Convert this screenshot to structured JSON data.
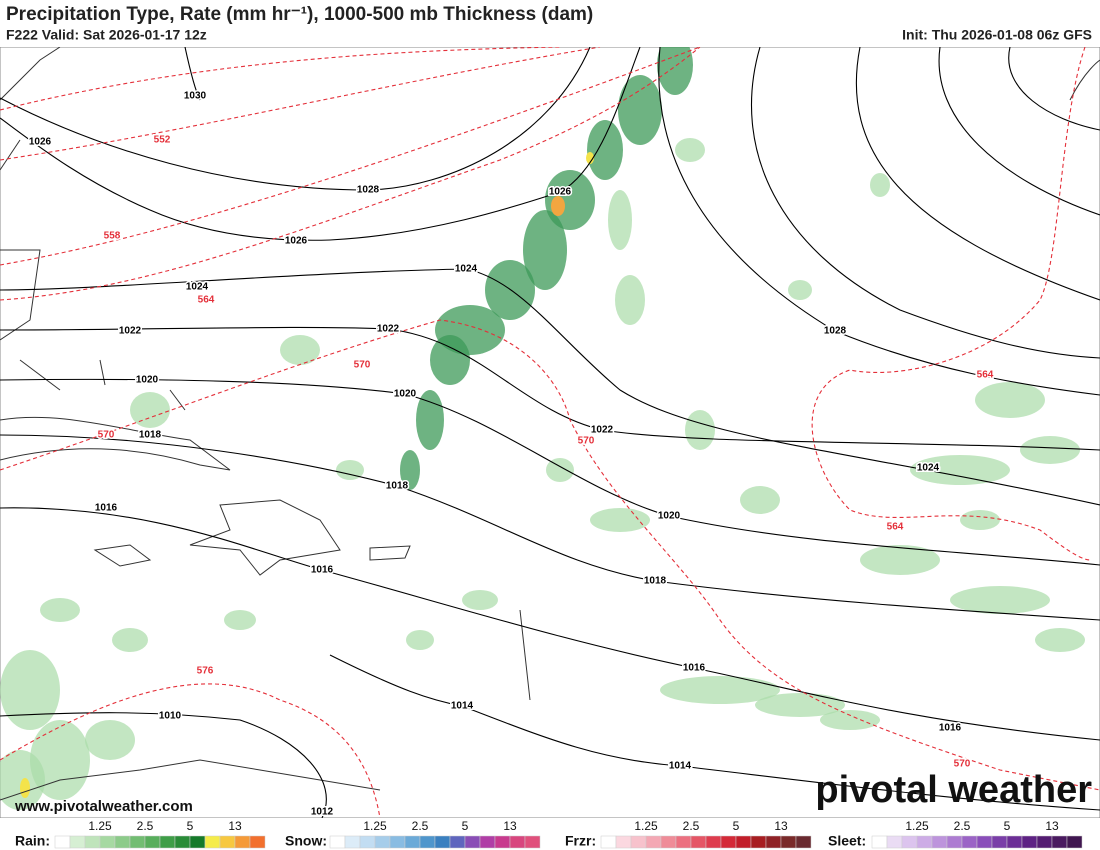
{
  "header": {
    "title": "Precipitation Type, Rate (mm hr⁻¹), 1000-500 mb Thickness (dam)",
    "valid": "F222 Valid: Sat 2026-01-17 12z",
    "init": "Init: Thu 2026-01-08 06z GFS"
  },
  "map": {
    "isobar_labels": [
      1030,
      1026,
      1028,
      1026,
      1026,
      1024,
      1024,
      1022,
      1022,
      1020,
      1020,
      1018,
      1018,
      1016,
      1016,
      1022,
      1028,
      1024,
      1020,
      1018,
      1016,
      1016,
      1014,
      1014,
      1010,
      1012
    ],
    "thickness_labels": [
      552,
      558,
      564,
      570,
      570,
      570,
      564,
      564,
      576,
      570
    ],
    "watermark": "www.pivotalweather.com",
    "logo": "pivotal weather"
  },
  "legend": {
    "items": [
      "Rain:",
      "Snow:",
      "Frzr:",
      "Sleet:"
    ],
    "ticks": [
      1.25,
      2.5,
      5,
      13
    ]
  }
}
